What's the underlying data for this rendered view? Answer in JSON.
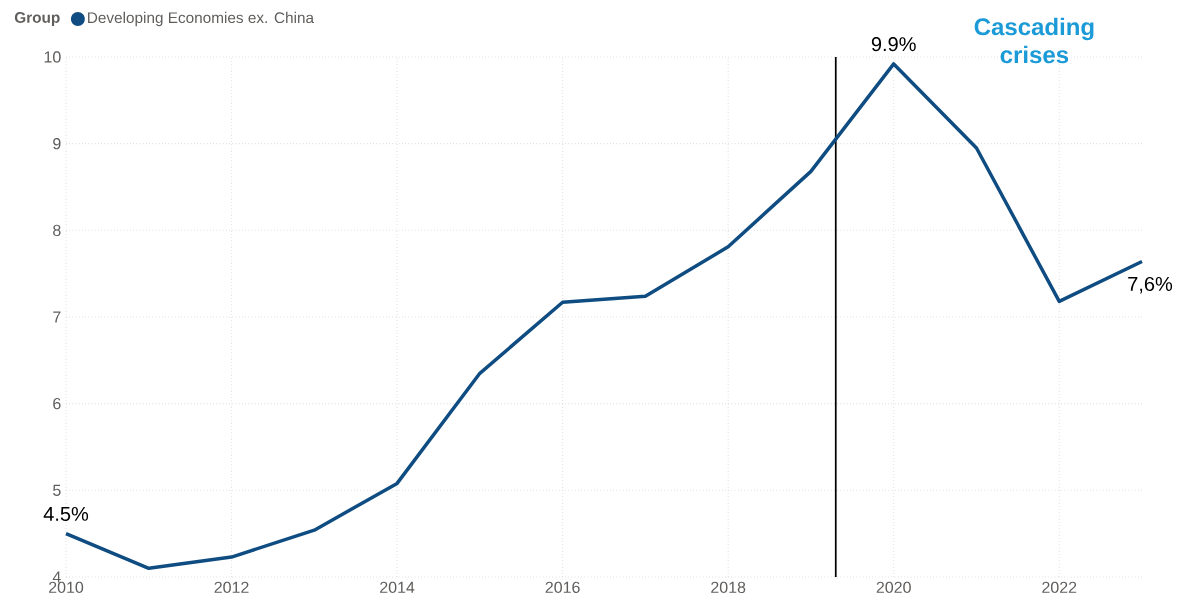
{
  "chart_data": {
    "type": "line",
    "legend_title": "Group",
    "legend": "top left",
    "grid": true,
    "marker": "none",
    "line_style": "solid",
    "x": [
      2010,
      2011,
      2012,
      2013,
      2014,
      2015,
      2016,
      2017,
      2018,
      2019,
      2020,
      2021,
      2022,
      2023
    ],
    "series": [
      {
        "name": "Developing Economies ex. China",
        "color": "#0f4c81",
        "values": [
          4.5,
          4.1,
          4.23,
          4.54,
          5.08,
          6.35,
          7.17,
          7.24,
          7.81,
          8.68,
          9.92,
          8.95,
          7.18,
          7.64
        ],
        "value_labels": [
          "4.5%",
          null,
          null,
          null,
          null,
          null,
          null,
          null,
          null,
          null,
          "9.9%",
          null,
          null,
          "7,6%"
        ]
      }
    ],
    "xlim": [
      2010,
      2023
    ],
    "ylim": [
      4,
      10
    ],
    "xticks": [
      2010,
      2012,
      2014,
      2016,
      2018,
      2020,
      2022
    ],
    "yticks": [
      4,
      5,
      6,
      7,
      8,
      9,
      10
    ],
    "ref_lines": [
      {
        "axis": "x",
        "value": 2019.3,
        "color": "#000000",
        "line_style": "solid"
      }
    ],
    "annotations": [
      "Cascading crises"
    ]
  }
}
